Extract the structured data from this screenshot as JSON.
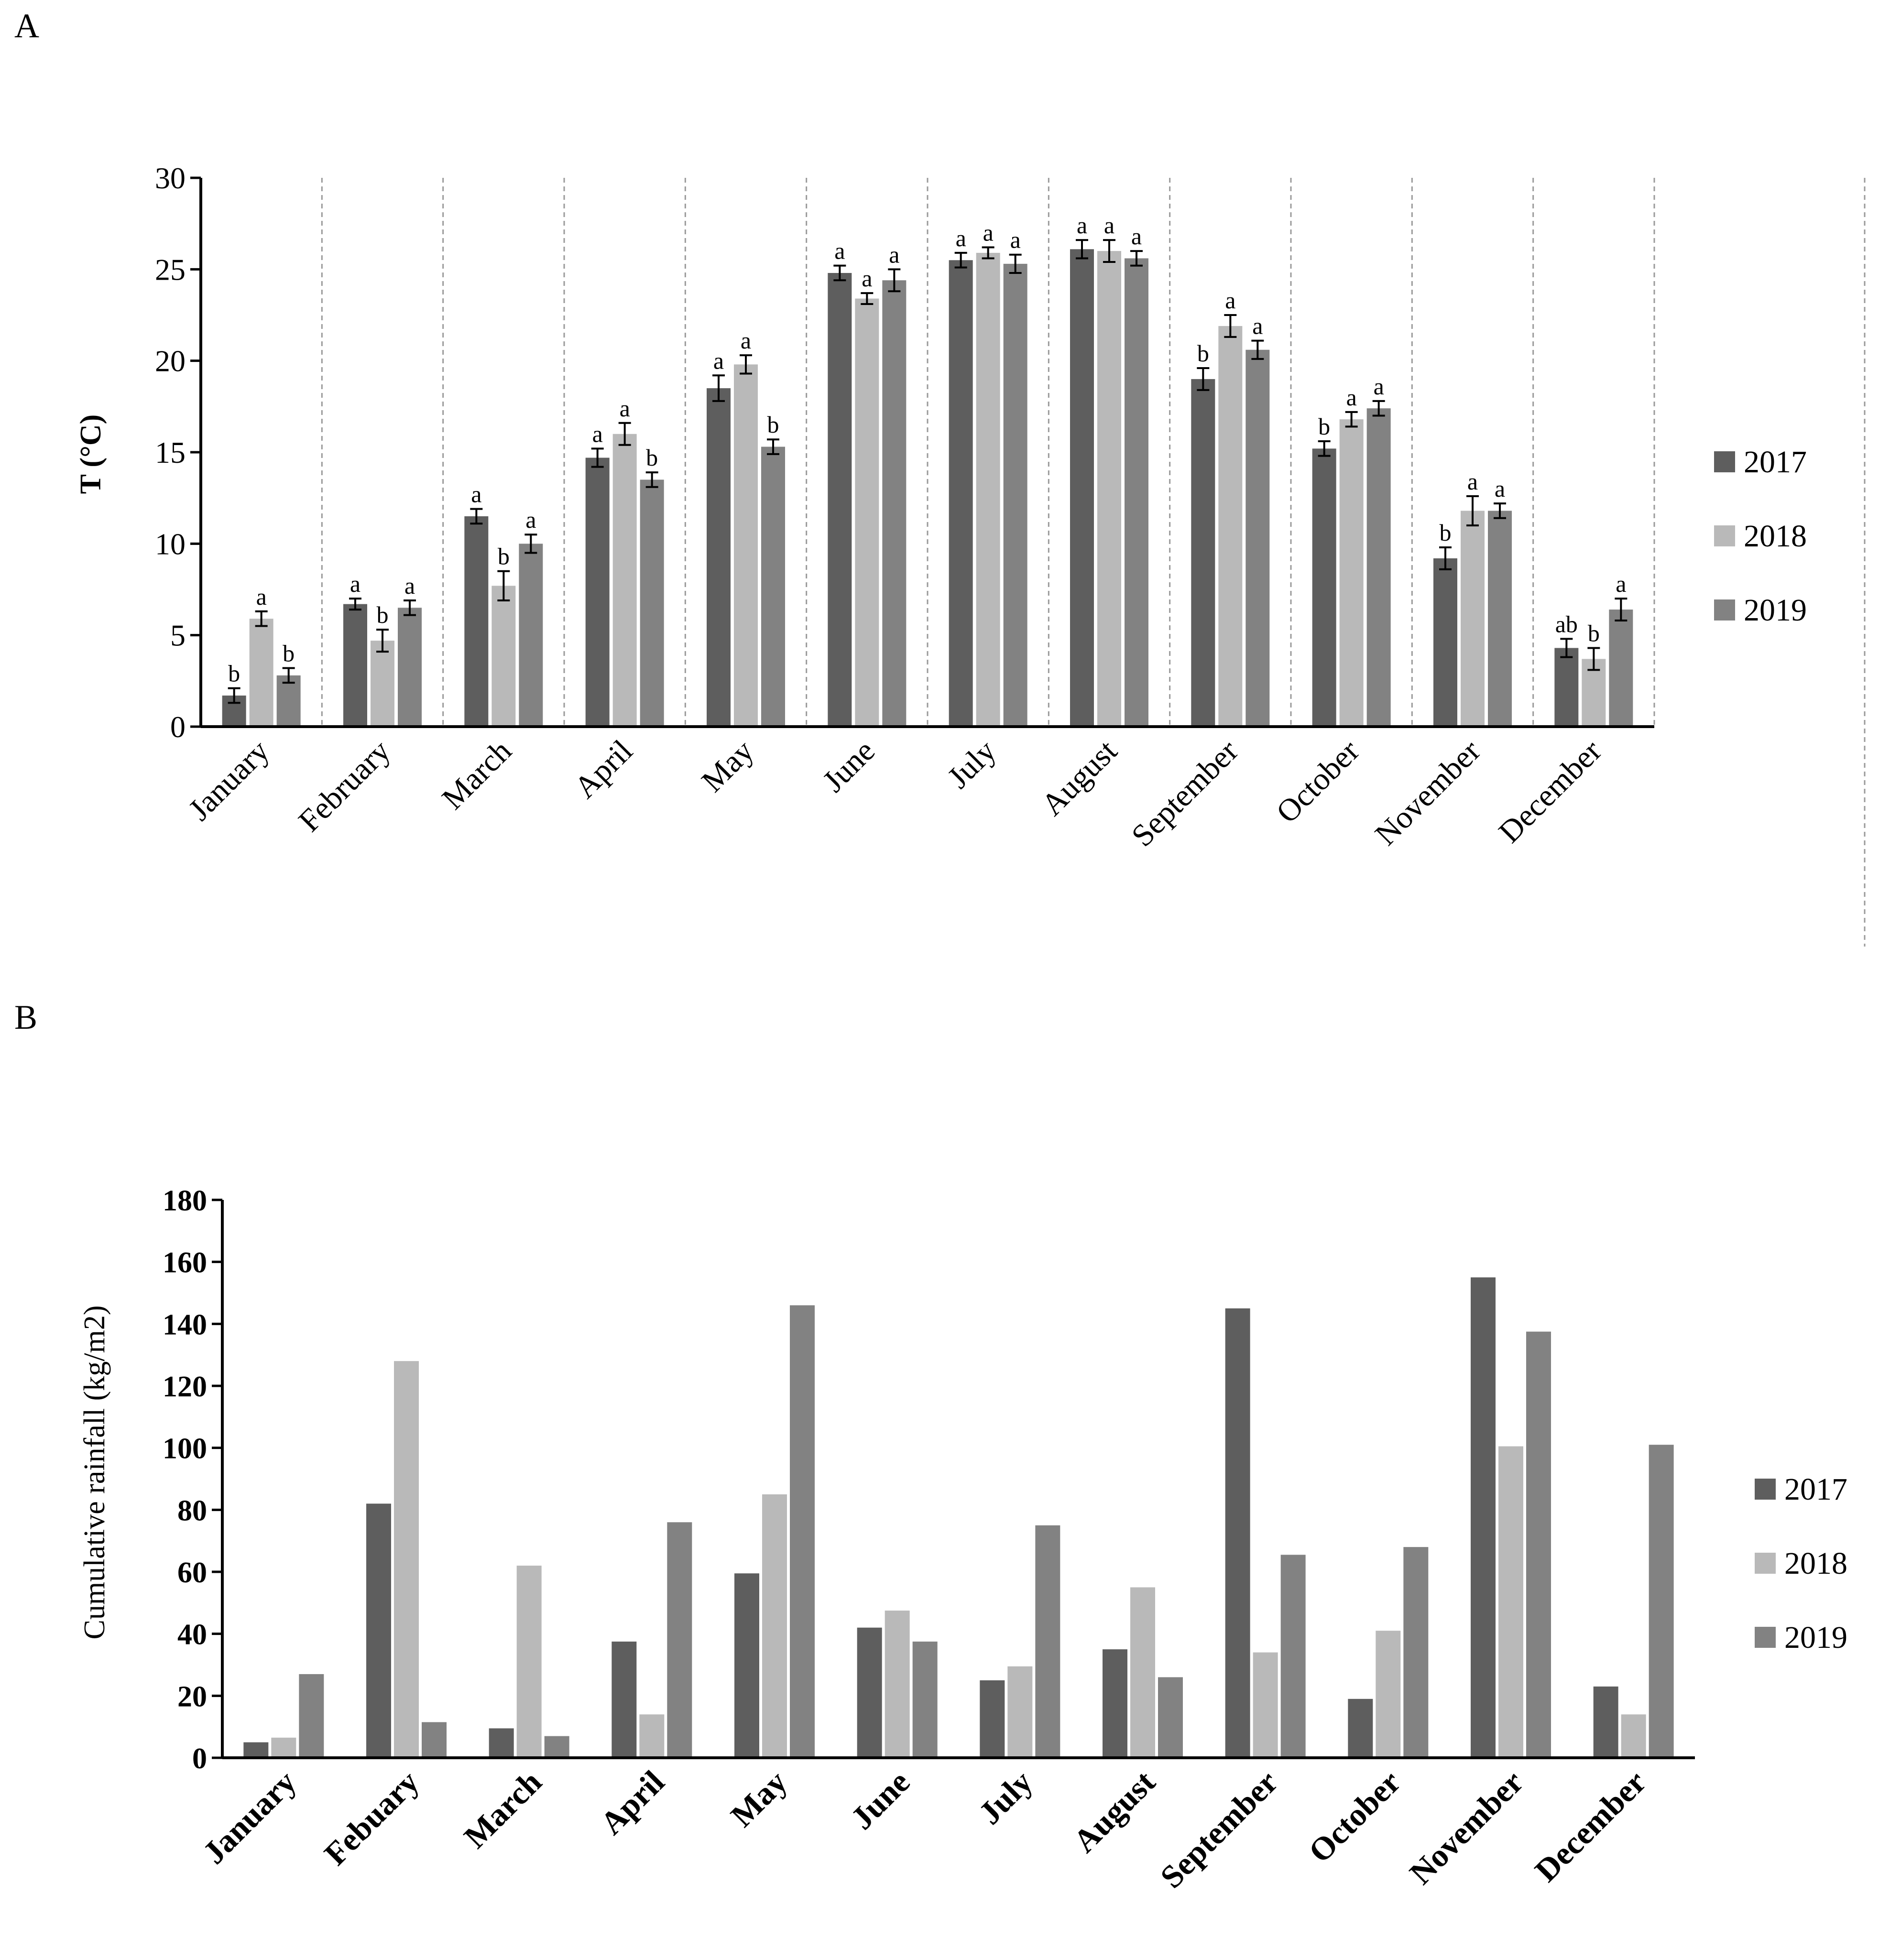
{
  "colors": {
    "s2017": "#5e5e5e",
    "s2018": "#b9b9b9",
    "s2019": "#828282",
    "axis": "#000000",
    "divider": "#9a9a9a"
  },
  "charts": [
    {
      "panel_label": "A",
      "ylabel": "T (°C)",
      "legend": [
        "2017",
        "2018",
        "2019"
      ],
      "yticks": [
        "0",
        "5",
        "10",
        "15",
        "20",
        "25",
        "30"
      ],
      "categories": [
        "January",
        "February",
        "March",
        "April",
        "May",
        "June",
        "July",
        "August",
        "September",
        "October",
        "November",
        "December"
      ]
    },
    {
      "panel_label": "B",
      "ylabel": "Cumulative rainfall (kg/m2)",
      "legend": [
        "2017",
        "2018",
        "2019"
      ],
      "yticks": [
        "0",
        "20",
        "40",
        "60",
        "80",
        "100",
        "120",
        "140",
        "160",
        "180"
      ],
      "categories": [
        "January",
        "Febuary",
        "March",
        "April",
        "May",
        "June",
        "July",
        "August",
        "September",
        "October",
        "November",
        "December"
      ]
    }
  ],
  "chart_data": [
    {
      "type": "bar",
      "title": "",
      "xlabel": "",
      "ylabel": "T (°C)",
      "ylim": [
        0,
        30
      ],
      "categories": [
        "January",
        "February",
        "March",
        "April",
        "May",
        "June",
        "July",
        "August",
        "September",
        "October",
        "November",
        "December"
      ],
      "series": [
        {
          "name": "2017",
          "values": [
            1.7,
            6.7,
            11.5,
            14.7,
            18.5,
            24.8,
            25.5,
            26.1,
            19.0,
            15.2,
            9.2,
            4.3
          ],
          "errors": [
            0.4,
            0.3,
            0.4,
            0.5,
            0.7,
            0.4,
            0.4,
            0.5,
            0.6,
            0.4,
            0.6,
            0.5
          ],
          "letters": [
            "b",
            "a",
            "a",
            "a",
            "a",
            "a",
            "a",
            "a",
            "b",
            "b",
            "b",
            "ab"
          ]
        },
        {
          "name": "2018",
          "values": [
            5.9,
            4.7,
            7.7,
            16.0,
            19.8,
            23.4,
            25.9,
            26.0,
            21.9,
            16.8,
            11.8,
            3.7
          ],
          "errors": [
            0.4,
            0.6,
            0.8,
            0.6,
            0.5,
            0.3,
            0.3,
            0.6,
            0.6,
            0.4,
            0.8,
            0.6
          ],
          "letters": [
            "a",
            "b",
            "b",
            "a",
            "a",
            "a",
            "a",
            "a",
            "a",
            "a",
            "a",
            "b"
          ]
        },
        {
          "name": "2019",
          "values": [
            2.8,
            6.5,
            10.0,
            13.5,
            15.3,
            24.4,
            25.3,
            25.6,
            20.6,
            17.4,
            11.8,
            6.4
          ],
          "errors": [
            0.4,
            0.4,
            0.5,
            0.4,
            0.4,
            0.6,
            0.5,
            0.4,
            0.5,
            0.4,
            0.4,
            0.6
          ],
          "letters": [
            "b",
            "a",
            "a",
            "b",
            "b",
            "a",
            "a",
            "a",
            "a",
            "a",
            "a",
            "a"
          ]
        }
      ]
    },
    {
      "type": "bar",
      "title": "",
      "xlabel": "",
      "ylabel": "Cumulative rainfall (kg/m2)",
      "ylim": [
        0,
        180
      ],
      "categories": [
        "January",
        "Febuary",
        "March",
        "April",
        "May",
        "June",
        "July",
        "August",
        "September",
        "October",
        "November",
        "December"
      ],
      "series": [
        {
          "name": "2017",
          "values": [
            5,
            82,
            9.5,
            37.5,
            59.5,
            42,
            25,
            35,
            145,
            19,
            155,
            23
          ]
        },
        {
          "name": "2018",
          "values": [
            6.5,
            128,
            62,
            14,
            85,
            47.5,
            29.5,
            55,
            34,
            41,
            100.5,
            14
          ]
        },
        {
          "name": "2019",
          "values": [
            27,
            11.5,
            7,
            76,
            146,
            37.5,
            75,
            26,
            65.5,
            68,
            137.5,
            101
          ]
        }
      ]
    }
  ]
}
